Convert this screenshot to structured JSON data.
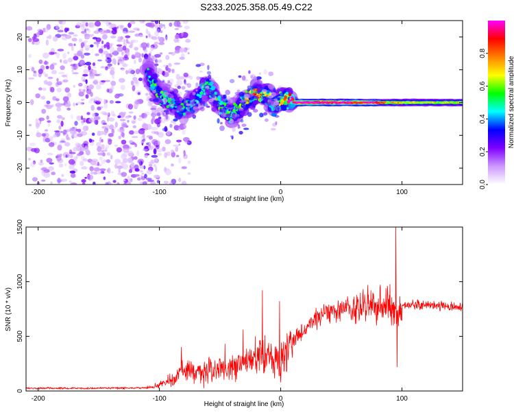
{
  "title": "S233.2025.358.05.49.C22",
  "chart_data": [
    {
      "type": "heatmap",
      "name": "spectrogram",
      "xlabel": "Height of straight line (km)",
      "ylabel": "Frequency (Hz)",
      "xlim": [
        -210,
        150
      ],
      "ylim": [
        -25,
        25
      ],
      "x_ticks": [
        -200,
        -100,
        0,
        100
      ],
      "x_tick_labels": [
        "-200",
        "-100",
        "0",
        "100"
      ],
      "y_ticks": [
        -20,
        -10,
        0,
        10,
        20
      ],
      "y_tick_labels": [
        "-20",
        "-10",
        "0",
        "10",
        "20"
      ],
      "colorbar": {
        "label": "Normalized spectral amplitude",
        "range": [
          0,
          1
        ],
        "ticks": [
          0.0,
          0.2,
          0.4,
          0.6,
          0.8
        ],
        "tick_labels": [
          "0.0",
          "0.2",
          "0.4",
          "0.6",
          "0.8"
        ],
        "colormap": [
          "#ffffff",
          "#cc99ff",
          "#8000ff",
          "#0000ff",
          "#00ffff",
          "#00ff00",
          "#ffff00",
          "#ff8000",
          "#ff0000",
          "#ff00ff"
        ]
      },
      "ridge": {
        "x": [
          -110,
          -100,
          -90,
          -80,
          -70,
          -60,
          -50,
          -40,
          -30,
          -20,
          -10,
          -5,
          0,
          10,
          20,
          40,
          60,
          80,
          90,
          95,
          100,
          120,
          150
        ],
        "freq_hz": [
          9,
          2,
          0,
          -2,
          1,
          5,
          -1,
          -4,
          0,
          3,
          2,
          -1,
          1,
          0,
          0,
          0,
          0,
          0,
          0,
          0,
          0,
          0,
          0
        ],
        "amplitude": [
          0.35,
          0.45,
          0.4,
          0.4,
          0.35,
          0.4,
          0.45,
          0.45,
          0.55,
          0.8,
          0.55,
          0.4,
          0.55,
          0.9,
          1.0,
          0.95,
          0.85,
          0.85,
          0.5,
          0.7,
          0.55,
          0.55,
          0.55
        ]
      },
      "noise_region_x": [
        -210,
        -100
      ]
    },
    {
      "type": "line",
      "name": "snr",
      "xlabel": "Height of straight line (km)",
      "ylabel": "SNR (10 * v/v)",
      "xlim": [
        -210,
        150
      ],
      "ylim": [
        0,
        1500
      ],
      "x_ticks": [
        -200,
        -100,
        0,
        100
      ],
      "x_tick_labels": [
        "-200",
        "-100",
        "0",
        "100"
      ],
      "y_ticks": [
        0,
        500,
        1000,
        1500
      ],
      "y_tick_labels": [
        "0",
        "500",
        "1000",
        "1500"
      ],
      "color": "#ff0000",
      "envelope": {
        "x": [
          -210,
          -150,
          -110,
          -100,
          -90,
          -80,
          -70,
          -60,
          -50,
          -40,
          -30,
          -20,
          -10,
          -5,
          0,
          10,
          20,
          30,
          50,
          70,
          90,
          95,
          100,
          110,
          130,
          150
        ],
        "y": [
          25,
          25,
          30,
          50,
          100,
          180,
          170,
          180,
          200,
          210,
          250,
          330,
          300,
          280,
          260,
          460,
          560,
          680,
          750,
          770,
          790,
          700,
          780,
          790,
          780,
          770
        ]
      },
      "spikes": [
        {
          "x": -82,
          "y": 400
        },
        {
          "x": -46,
          "y": 430
        },
        {
          "x": -31,
          "y": 560
        },
        {
          "x": -15,
          "y": 920
        },
        {
          "x": -1,
          "y": 820
        },
        {
          "x": 0,
          "y": 80
        },
        {
          "x": 68,
          "y": 930
        },
        {
          "x": 88,
          "y": 960
        },
        {
          "x": 95,
          "y": 1500
        },
        {
          "x": 96,
          "y": 220
        }
      ]
    }
  ]
}
